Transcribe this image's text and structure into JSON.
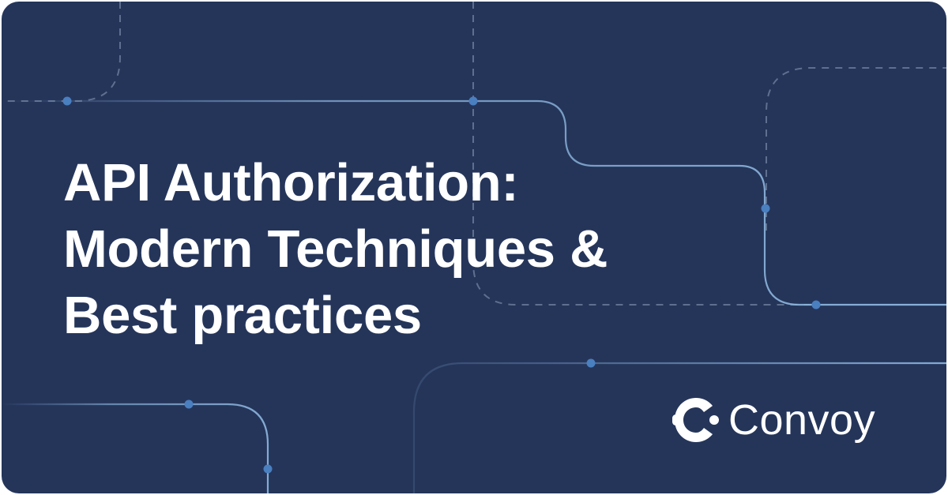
{
  "headline": {
    "line1": "API Authorization:",
    "line2": "Modern Techniques &",
    "line3": "Best practices"
  },
  "brand": {
    "name": "Convoy",
    "icon": "convoy-logo-icon"
  },
  "colors": {
    "background": "#25355a",
    "text": "#ffffff",
    "dashed_line": "#5f6f8f",
    "solid_line": "#8fb8e0",
    "node": "#4a7fc0"
  }
}
